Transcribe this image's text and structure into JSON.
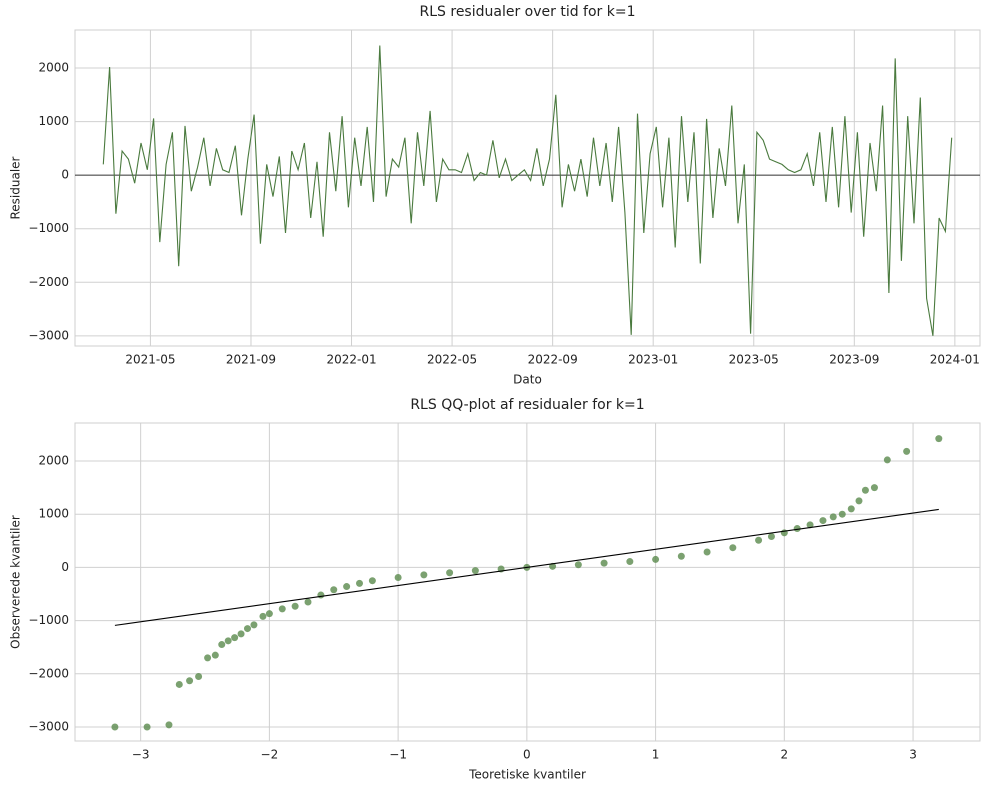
{
  "chart_data": [
    {
      "type": "line",
      "title": "RLS residualer over tid for k=1",
      "x_label": "Dato",
      "y_label": "Residualer",
      "x": [
        "2021-03",
        "2021-03",
        "2021-03",
        "2021-03",
        "2021-04",
        "2021-04",
        "2021-04",
        "2021-04",
        "2021-05",
        "2021-05",
        "2021-05",
        "2021-05",
        "2021-06",
        "2021-06",
        "2021-06",
        "2021-06",
        "2021-07",
        "2021-07",
        "2021-07",
        "2021-07",
        "2021-08",
        "2021-08",
        "2021-08",
        "2021-08",
        "2021-09",
        "2021-09",
        "2021-09",
        "2021-09",
        "2021-10",
        "2021-10",
        "2021-10",
        "2021-10",
        "2021-11",
        "2021-11",
        "2021-11",
        "2021-11",
        "2021-12",
        "2021-12",
        "2021-12",
        "2021-12",
        "2022-01",
        "2022-01",
        "2022-01",
        "2022-01",
        "2022-02",
        "2022-02",
        "2022-02",
        "2022-02",
        "2022-03",
        "2022-03",
        "2022-03",
        "2022-03",
        "2022-04",
        "2022-04",
        "2022-04",
        "2022-04",
        "2022-05",
        "2022-05",
        "2022-05",
        "2022-05",
        "2022-06",
        "2022-06",
        "2022-06",
        "2022-06",
        "2022-07",
        "2022-07",
        "2022-07",
        "2022-07",
        "2022-08",
        "2022-08",
        "2022-08",
        "2022-08",
        "2022-09",
        "2022-09",
        "2022-09",
        "2022-09",
        "2022-10",
        "2022-10",
        "2022-10",
        "2022-10",
        "2022-11",
        "2022-11",
        "2022-11",
        "2022-11",
        "2022-12",
        "2022-12",
        "2022-12",
        "2022-12",
        "2023-01",
        "2023-01",
        "2023-01",
        "2023-01",
        "2023-02",
        "2023-02",
        "2023-02",
        "2023-02",
        "2023-03",
        "2023-03",
        "2023-03",
        "2023-03",
        "2023-04",
        "2023-04",
        "2023-04",
        "2023-04",
        "2023-05",
        "2023-05",
        "2023-05",
        "2023-05",
        "2023-06",
        "2023-06",
        "2023-06",
        "2023-06",
        "2023-07",
        "2023-07",
        "2023-07",
        "2023-07",
        "2023-08",
        "2023-08",
        "2023-08",
        "2023-08",
        "2023-09",
        "2023-09",
        "2023-09",
        "2023-09",
        "2023-10",
        "2023-10",
        "2023-10",
        "2023-10",
        "2023-11",
        "2023-11",
        "2023-11",
        "2023-11",
        "2023-12",
        "2023-12",
        "2023-12",
        "2023-12"
      ],
      "series": [
        {
          "color": "#4a7a3e",
          "values": [
            200,
            2020,
            -720,
            450,
            300,
            -150,
            600,
            100,
            1060,
            -1250,
            200,
            800,
            -1700,
            920,
            -300,
            150,
            700,
            -200,
            500,
            100,
            50,
            550,
            -750,
            300,
            1130,
            -1280,
            200,
            -400,
            350,
            -1080,
            450,
            100,
            600,
            -800,
            250,
            -1150,
            800,
            -300,
            1100,
            -600,
            700,
            -200,
            900,
            -500,
            2420,
            -400,
            300,
            150,
            700,
            -900,
            800,
            -200,
            1200,
            -500,
            300,
            100,
            100,
            50,
            400,
            -100,
            50,
            0,
            650,
            -50,
            300,
            -100,
            0,
            100,
            -100,
            500,
            -200,
            300,
            1500,
            -600,
            200,
            -300,
            300,
            -400,
            700,
            -200,
            600,
            -500,
            900,
            -700,
            -2980,
            1150,
            -1080,
            400,
            900,
            -600,
            700,
            -1350,
            1100,
            -500,
            800,
            -1650,
            1050,
            -800,
            500,
            -200,
            1300,
            -900,
            200,
            -2960,
            800,
            650,
            300,
            250,
            200,
            100,
            50,
            100,
            400,
            -200,
            800,
            -500,
            900,
            -600,
            1100,
            -700,
            800,
            -1150,
            600,
            -300,
            1300,
            -2200,
            2180,
            -1600,
            1100,
            -900,
            1450,
            -2300,
            -3000,
            -800,
            -1050,
            700
          ]
        }
      ],
      "hline": 0,
      "xlim": [
        "2021-02",
        "2024-02"
      ],
      "xticks": [
        "2021-05",
        "2021-09",
        "2022-01",
        "2022-05",
        "2022-09",
        "2023-01",
        "2023-05",
        "2023-09",
        "2024-01"
      ],
      "ylim": [
        -3190,
        2710
      ],
      "yticks": [
        {
          "value": -3000,
          "label": "−3000"
        },
        {
          "value": -2000,
          "label": "−2000"
        },
        {
          "value": -1000,
          "label": "−1000"
        },
        0,
        1000,
        2000
      ],
      "grid": true
    },
    {
      "type": "scatter",
      "title": "RLS QQ-plot af residualer for k=1",
      "x_label": "Teoretiske kvantiler",
      "y_label": "Observerede kvantiler",
      "series": [
        {
          "color": "#5a8a4c",
          "x": [
            -3.2,
            -2.95,
            -2.78,
            -2.7,
            -2.62,
            -2.55,
            -2.48,
            -2.42,
            -2.37,
            -2.32,
            -2.27,
            -2.22,
            -2.17,
            -2.12,
            -2.05,
            -2.0,
            -1.9,
            -1.8,
            -1.7,
            -1.6,
            -1.5,
            -1.4,
            -1.3,
            -1.2,
            -1.0,
            -0.8,
            -0.6,
            -0.4,
            -0.2,
            0,
            0.2,
            0.4,
            0.6,
            0.8,
            1.0,
            1.2,
            1.4,
            1.6,
            1.8,
            1.9,
            2.0,
            2.1,
            2.2,
            2.3,
            2.38,
            2.45,
            2.52,
            2.58,
            2.63,
            2.7,
            2.8,
            2.95,
            3.2
          ],
          "values": [
            -3000,
            -3000,
            -2960,
            -2200,
            -2130,
            -2050,
            -1700,
            -1650,
            -1450,
            -1380,
            -1320,
            -1250,
            -1150,
            -1080,
            -920,
            -870,
            -780,
            -730,
            -650,
            -520,
            -420,
            -360,
            -300,
            -250,
            -190,
            -140,
            -100,
            -60,
            -30,
            0,
            20,
            50,
            80,
            110,
            150,
            210,
            290,
            370,
            510,
            580,
            650,
            730,
            800,
            880,
            950,
            1000,
            1100,
            1250,
            1450,
            1500,
            2020,
            2180,
            2420
          ]
        }
      ],
      "reference_line": {
        "color": "#000000",
        "x": [
          -3.2,
          3.2
        ],
        "values": [
          -1090,
          1090
        ]
      },
      "xlim": [
        -3.51,
        3.52
      ],
      "xticks": [
        {
          "value": -3,
          "label": "−3"
        },
        {
          "value": -2,
          "label": "−2"
        },
        {
          "value": -1,
          "label": "−1"
        },
        0,
        1,
        2,
        3
      ],
      "ylim": [
        -3263,
        2714
      ],
      "yticks": [
        {
          "value": -3000,
          "label": "−3000"
        },
        {
          "value": -2000,
          "label": "−2000"
        },
        {
          "value": -1000,
          "label": "−1000"
        },
        0,
        1000,
        2000
      ],
      "grid": true
    }
  ]
}
